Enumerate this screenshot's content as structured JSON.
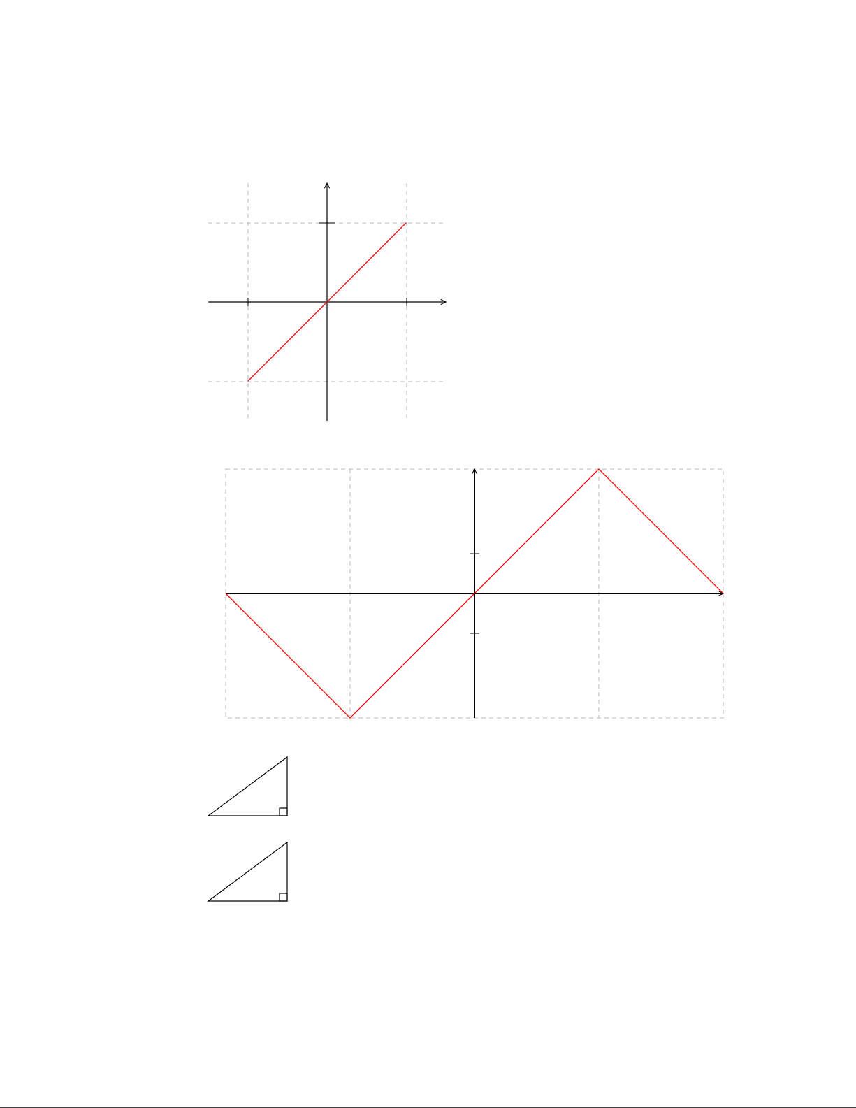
{
  "colors": {
    "plot": "#ff0000",
    "axis": "#000000",
    "grid": "#b8b8b8"
  },
  "figures": [
    {
      "kind": "function-graph",
      "name": "identity-line-plot",
      "x_range": [
        -1.5,
        1.5
      ],
      "y_range": [
        -1.5,
        1.5
      ],
      "grid_x": [
        -1,
        1
      ],
      "grid_y": [
        -1,
        1
      ],
      "x_ticks": [
        -1,
        1
      ],
      "y_ticks": [
        1
      ],
      "points": [
        [
          -1,
          -1
        ],
        [
          1,
          1
        ]
      ]
    },
    {
      "kind": "function-graph",
      "name": "triangle-wave-plot",
      "x_range": [
        -2,
        2
      ],
      "y_range": [
        -1,
        1
      ],
      "grid_x": [
        -2,
        -1,
        1,
        2
      ],
      "grid_y": [
        -1,
        1
      ],
      "x_ticks": [],
      "y_ticks": [
        -0.3333,
        0.3333
      ],
      "points": [
        [
          -2,
          0
        ],
        [
          -1,
          -1
        ],
        [
          0,
          0
        ],
        [
          1,
          1
        ],
        [
          2,
          0
        ]
      ]
    }
  ],
  "triangles": [
    {
      "name": "right-triangle-upper",
      "right_angle": "bottom-right"
    },
    {
      "name": "right-triangle-lower",
      "right_angle": "bottom-right"
    }
  ]
}
